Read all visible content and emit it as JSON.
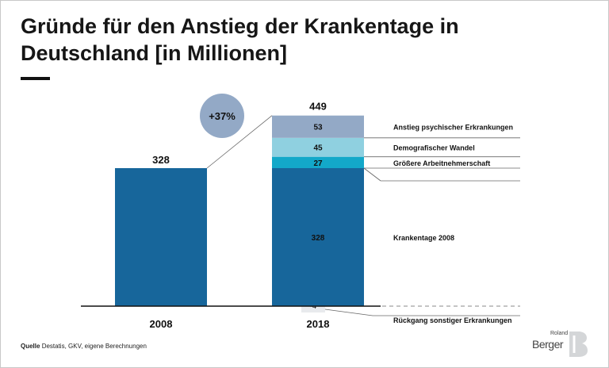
{
  "title": "Gründe für den Anstieg der Krankentage in Deutschland [in Millionen]",
  "source": {
    "label": "Quelle",
    "text": "Destatis, GKV, eigene Berechnungen"
  },
  "logo": {
    "small": "Roland",
    "main": "Berger"
  },
  "colors": {
    "krankentage": "#17669b",
    "arbeitnehmer": "#13a8c9",
    "demografie": "#8fd0e0",
    "psychisch": "#93a9c6",
    "bubble": "#93a9c6",
    "rueckgang": "#e8eaed"
  },
  "chart_data": {
    "type": "bar",
    "categories": [
      "2008",
      "2018"
    ],
    "ylim": [
      -4,
      449
    ],
    "bar_2008": {
      "value": 328,
      "label": "328"
    },
    "bar_2018": {
      "total_label": "449",
      "segments": [
        {
          "name": "Rückgang sonstiger Erkrankungen",
          "value": -4,
          "label": "-4",
          "color": "#e8eaed"
        },
        {
          "name": "Krankentage 2008",
          "value": 328,
          "label": "328",
          "color": "#17669b"
        },
        {
          "name": "Größere Arbeitnehmerschaft",
          "value": 27,
          "label": "27",
          "color": "#13a8c9"
        },
        {
          "name": "Demografischer Wandel",
          "value": 45,
          "label": "45",
          "color": "#8fd0e0"
        },
        {
          "name": "Anstieg psychischer Erkrankungen",
          "value": 53,
          "label": "53",
          "color": "#93a9c6"
        }
      ]
    },
    "growth_label": "+37%",
    "grid": false
  }
}
